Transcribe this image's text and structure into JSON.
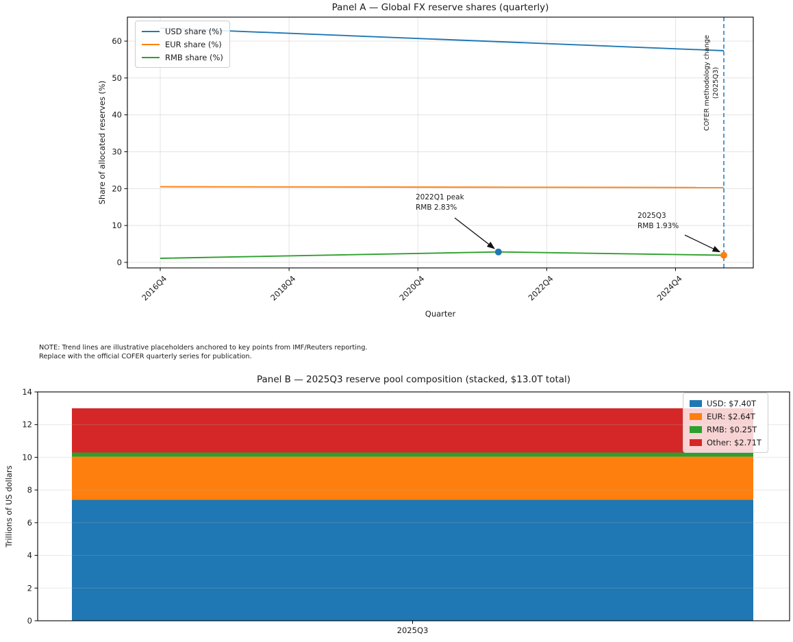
{
  "colors": {
    "blue": "#1f77b4",
    "orange": "#ff7f0e",
    "green": "#2ca02c",
    "red": "#d62728",
    "grid": "#b0b0b0",
    "spine": "#000000",
    "text": "#1a1a1a"
  },
  "panel_a": {
    "title": "Panel A — Global FX reserve shares (quarterly)",
    "xlabel": "Quarter",
    "ylabel": "Share of allocated reserves (%)",
    "legend": [
      {
        "label": "USD share (%)",
        "color_key": "blue"
      },
      {
        "label": "EUR share (%)",
        "color_key": "orange"
      },
      {
        "label": "RMB share (%)",
        "color_key": "green"
      }
    ],
    "vline_label_line1": "COFER methodology change",
    "vline_label_line2": "(2025Q3)"
  },
  "note": {
    "line1": "NOTE: Trend lines are illustrative placeholders anchored to key points from IMF/Reuters reporting.",
    "line2": "Replace with the official COFER quarterly series for publication."
  },
  "panel_b": {
    "title": "Panel B — 2025Q3 reserve pool composition (stacked, $13.0T total)",
    "ylabel": "Trillions of US dollars",
    "x_tick": "2025Q3",
    "legend": [
      {
        "label": "USD: $7.40T",
        "color_key": "blue"
      },
      {
        "label": "EUR: $2.64T",
        "color_key": "orange"
      },
      {
        "label": "RMB: $0.25T",
        "color_key": "green"
      },
      {
        "label": "Other: $2.71T",
        "color_key": "red"
      }
    ]
  },
  "chart_data": [
    {
      "panel": "A",
      "type": "line",
      "title": "Panel A — Global FX reserve shares (quarterly)",
      "xlabel": "Quarter",
      "ylabel": "Share of allocated reserves (%)",
      "x_tick_labels": [
        "2016Q4",
        "2018Q4",
        "2020Q4",
        "2022Q4",
        "2024Q4"
      ],
      "y_ticks": [
        0,
        10,
        20,
        30,
        40,
        50,
        60
      ],
      "ylim": [
        -1.5,
        66.5
      ],
      "x_domain": [
        "2016Q4",
        "2025Q3"
      ],
      "grid": true,
      "legend_position": "upper left",
      "series": [
        {
          "key": "usd",
          "name": "USD share (%)",
          "color_key": "blue",
          "points": [
            [
              "2016Q4",
              63.5
            ],
            [
              "2025Q3",
              57.4
            ]
          ]
        },
        {
          "key": "eur",
          "name": "EUR share (%)",
          "color_key": "orange",
          "points": [
            [
              "2016Q4",
              20.5
            ],
            [
              "2025Q3",
              20.3
            ]
          ]
        },
        {
          "key": "rmb",
          "name": "RMB share (%)",
          "color_key": "green",
          "points": [
            [
              "2016Q4",
              1.1
            ],
            [
              "2022Q1",
              2.83
            ],
            [
              "2025Q3",
              1.93
            ]
          ]
        }
      ],
      "markers": [
        {
          "key": "rmb-2022q1-peak",
          "x": "2022Q1",
          "y": 2.83,
          "color_key": "blue"
        },
        {
          "key": "rmb-2025q3",
          "x": "2025Q3",
          "y": 1.93,
          "color_key": "orange"
        }
      ],
      "annotations": [
        {
          "key": "peak-annotation",
          "lines": [
            "2022Q1 peak",
            "RMB 2.83%"
          ],
          "target_x": "2022Q1",
          "target_y": 2.83
        },
        {
          "key": "latest-annotation",
          "lines": [
            "2025Q3",
            "RMB 1.93%"
          ],
          "target_x": "2025Q3",
          "target_y": 1.93
        }
      ],
      "vline": {
        "x": "2025Q3",
        "style": "dashed",
        "color_key": "blue",
        "label": "COFER methodology change (2025Q3)"
      }
    },
    {
      "panel": "B",
      "type": "bar",
      "stacked": true,
      "title": "Panel B — 2025Q3 reserve pool composition (stacked, $13.0T total)",
      "ylabel": "Trillions of US dollars",
      "categories": [
        "2025Q3"
      ],
      "total": 13.0,
      "total_label": "$13.0T",
      "ylim": [
        0,
        14
      ],
      "y_ticks": [
        0,
        2,
        4,
        6,
        8,
        10,
        12,
        14
      ],
      "grid": true,
      "legend_position": "upper right",
      "series": [
        {
          "key": "usd",
          "name": "USD: $7.40T",
          "value": 7.4,
          "color_key": "blue"
        },
        {
          "key": "eur",
          "name": "EUR: $2.64T",
          "value": 2.64,
          "color_key": "orange"
        },
        {
          "key": "rmb",
          "name": "RMB: $0.25T",
          "value": 0.25,
          "color_key": "green"
        },
        {
          "key": "other",
          "name": "Other: $2.71T",
          "value": 2.71,
          "color_key": "red"
        }
      ]
    }
  ]
}
